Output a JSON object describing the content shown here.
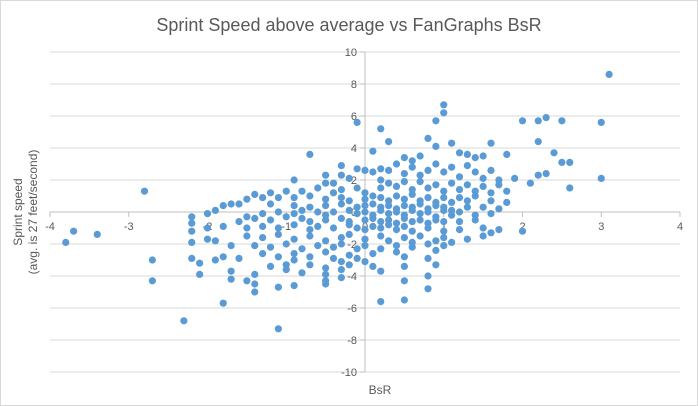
{
  "chart_data": {
    "type": "scatter",
    "title": "Sprint Speed above average vs FanGraphs BsR",
    "xlabel": "BsR",
    "ylabel_line1": "Sprint speed",
    "ylabel_line2": "(avg. is 27 feet/second)",
    "xlim": [
      -4,
      4
    ],
    "ylim": [
      -10,
      10
    ],
    "x_ticks": [
      -4,
      -3,
      -2,
      -1,
      0,
      1,
      2,
      3,
      4
    ],
    "y_ticks": [
      -10,
      -8,
      -6,
      -4,
      -2,
      0,
      2,
      4,
      6,
      8,
      10
    ],
    "x_tick_labels": [
      "-4",
      "-3",
      "-2",
      "-1",
      "0",
      "1",
      "2",
      "3",
      "4"
    ],
    "y_tick_labels": [
      "-10",
      "-8",
      "-6",
      "-4",
      "-2",
      "0",
      "2",
      "4",
      "6",
      "8",
      "10"
    ],
    "grid": "horizontal",
    "marker_color": "#5B9BD5",
    "points": [
      [
        3.1,
        8.6
      ],
      [
        1.0,
        6.7
      ],
      [
        1.0,
        6.2
      ],
      [
        -0.1,
        5.6
      ],
      [
        0.9,
        5.7
      ],
      [
        2.3,
        5.9
      ],
      [
        2.2,
        5.7
      ],
      [
        2.0,
        5.7
      ],
      [
        2.5,
        5.7
      ],
      [
        3.0,
        5.6
      ],
      [
        0.2,
        5.2
      ],
      [
        0.3,
        4.4
      ],
      [
        0.8,
        4.6
      ],
      [
        0.9,
        4.1
      ],
      [
        1.1,
        4.3
      ],
      [
        1.6,
        4.3
      ],
      [
        2.2,
        4.4
      ],
      [
        -0.7,
        3.6
      ],
      [
        0.5,
        3.4
      ],
      [
        0.7,
        3.5
      ],
      [
        1.3,
        3.6
      ],
      [
        1.4,
        3.4
      ],
      [
        1.5,
        3.5
      ],
      [
        1.8,
        3.6
      ],
      [
        2.4,
        3.7
      ],
      [
        2.5,
        3.1
      ],
      [
        2.6,
        3.1
      ],
      [
        0.1,
        3.8
      ],
      [
        1.2,
        3.7
      ],
      [
        0.6,
        3.2
      ],
      [
        -0.3,
        2.9
      ],
      [
        -0.1,
        2.7
      ],
      [
        0.0,
        2.6
      ],
      [
        0.1,
        2.5
      ],
      [
        0.2,
        2.7
      ],
      [
        0.3,
        2.6
      ],
      [
        0.4,
        3.0
      ],
      [
        0.5,
        2.4
      ],
      [
        0.6,
        2.8
      ],
      [
        0.7,
        2.3
      ],
      [
        0.8,
        2.6
      ],
      [
        0.9,
        3.0
      ],
      [
        1.0,
        2.5
      ],
      [
        1.1,
        2.8
      ],
      [
        1.2,
        2.2
      ],
      [
        1.3,
        2.9
      ],
      [
        1.4,
        2.5
      ],
      [
        1.5,
        2.1
      ],
      [
        1.6,
        2.6
      ],
      [
        1.7,
        2.0
      ],
      [
        2.3,
        2.4
      ],
      [
        2.2,
        2.3
      ],
      [
        2.1,
        1.8
      ],
      [
        2.6,
        1.5
      ],
      [
        3.0,
        2.1
      ],
      [
        1.9,
        2.1
      ],
      [
        -0.5,
        2.3
      ],
      [
        -0.3,
        2.3
      ],
      [
        -0.9,
        2.0
      ],
      [
        -0.5,
        1.8
      ],
      [
        -0.4,
        1.8
      ],
      [
        -0.2,
        2.1
      ],
      [
        0.2,
        2.0
      ],
      [
        0.2,
        1.5
      ],
      [
        0.3,
        1.8
      ],
      [
        0.4,
        1.6
      ],
      [
        0.5,
        1.9
      ],
      [
        0.6,
        1.4
      ],
      [
        0.7,
        1.9
      ],
      [
        0.8,
        1.5
      ],
      [
        0.9,
        1.7
      ],
      [
        1.0,
        1.3
      ],
      [
        1.1,
        1.8
      ],
      [
        1.2,
        1.4
      ],
      [
        1.3,
        1.7
      ],
      [
        1.4,
        1.3
      ],
      [
        1.5,
        1.6
      ],
      [
        1.6,
        1.2
      ],
      [
        1.7,
        1.7
      ],
      [
        1.8,
        1.3
      ],
      [
        -2.8,
        1.3
      ],
      [
        -1.4,
        1.1
      ],
      [
        -1.2,
        1.2
      ],
      [
        -1.0,
        1.3
      ],
      [
        -0.8,
        1.3
      ],
      [
        -0.6,
        1.5
      ],
      [
        -0.4,
        1.2
      ],
      [
        -0.3,
        1.4
      ],
      [
        -0.1,
        1.5
      ],
      [
        0.0,
        1.2
      ],
      [
        -1.5,
        0.8
      ],
      [
        -1.3,
        0.9
      ],
      [
        -1.1,
        0.9
      ],
      [
        -0.9,
        0.9
      ],
      [
        -0.7,
        1.0
      ],
      [
        -0.5,
        0.8
      ],
      [
        -0.3,
        0.9
      ],
      [
        -0.2,
        0.7
      ],
      [
        0.0,
        0.8
      ],
      [
        0.1,
        1.0
      ],
      [
        0.2,
        0.9
      ],
      [
        0.3,
        0.7
      ],
      [
        0.4,
        1.0
      ],
      [
        0.5,
        0.8
      ],
      [
        0.6,
        1.1
      ],
      [
        0.7,
        0.7
      ],
      [
        0.8,
        0.9
      ],
      [
        0.9,
        0.6
      ],
      [
        1.0,
        0.9
      ],
      [
        1.1,
        0.6
      ],
      [
        1.2,
        0.9
      ],
      [
        1.3,
        0.7
      ],
      [
        1.4,
        1.0
      ],
      [
        1.6,
        0.7
      ],
      [
        1.8,
        0.6
      ],
      [
        -1.8,
        0.4
      ],
      [
        -1.6,
        0.5
      ],
      [
        -1.7,
        0.5
      ],
      [
        -1.2,
        0.5
      ],
      [
        -0.9,
        0.4
      ],
      [
        -0.7,
        0.3
      ],
      [
        -0.5,
        0.4
      ],
      [
        -0.3,
        0.5
      ],
      [
        -0.1,
        0.3
      ],
      [
        0.0,
        0.4
      ],
      [
        0.1,
        0.5
      ],
      [
        0.2,
        0.3
      ],
      [
        0.3,
        0.4
      ],
      [
        0.4,
        0.2
      ],
      [
        0.5,
        0.4
      ],
      [
        0.6,
        0.3
      ],
      [
        0.7,
        0.5
      ],
      [
        0.8,
        0.2
      ],
      [
        0.9,
        0.4
      ],
      [
        1.0,
        0.3
      ],
      [
        1.1,
        0.1
      ],
      [
        1.3,
        0.3
      ],
      [
        1.5,
        0.3
      ],
      [
        1.7,
        0.2
      ],
      [
        -2.2,
        -0.3
      ],
      [
        -2.2,
        -0.7
      ],
      [
        -2.0,
        -0.1
      ],
      [
        -1.9,
        0.1
      ],
      [
        -1.5,
        -0.3
      ],
      [
        -1.3,
        -0.1
      ],
      [
        -1.1,
        0.0
      ],
      [
        -0.9,
        -0.1
      ],
      [
        -0.8,
        0.1
      ],
      [
        -0.6,
        0.0
      ],
      [
        -0.5,
        -0.2
      ],
      [
        -0.4,
        0.0
      ],
      [
        -0.2,
        0.1
      ],
      [
        -0.1,
        -0.1
      ],
      [
        0.0,
        0.0
      ],
      [
        0.1,
        -0.2
      ],
      [
        0.2,
        0.1
      ],
      [
        0.3,
        -0.1
      ],
      [
        0.4,
        0.0
      ],
      [
        0.5,
        -0.2
      ],
      [
        0.6,
        0.1
      ],
      [
        0.7,
        -0.1
      ],
      [
        0.8,
        0.0
      ],
      [
        0.9,
        -0.3
      ],
      [
        1.0,
        0.1
      ],
      [
        1.1,
        -0.2
      ],
      [
        1.2,
        0.0
      ],
      [
        1.4,
        -0.2
      ],
      [
        1.6,
        -0.1
      ],
      [
        -1.6,
        -0.6
      ],
      [
        -1.4,
        -0.4
      ],
      [
        -1.2,
        -0.5
      ],
      [
        -1.0,
        -0.3
      ],
      [
        -0.8,
        -0.4
      ],
      [
        -0.7,
        -0.6
      ],
      [
        -0.5,
        -0.5
      ],
      [
        -0.3,
        -0.4
      ],
      [
        -0.2,
        -0.6
      ],
      [
        0.0,
        -0.5
      ],
      [
        0.1,
        -0.4
      ],
      [
        0.2,
        -0.6
      ],
      [
        0.3,
        -0.5
      ],
      [
        0.4,
        -0.7
      ],
      [
        0.5,
        -0.4
      ],
      [
        0.6,
        -0.6
      ],
      [
        0.7,
        -0.5
      ],
      [
        0.8,
        -0.7
      ],
      [
        0.9,
        -0.5
      ],
      [
        1.0,
        -0.6
      ],
      [
        1.2,
        -0.6
      ],
      [
        1.4,
        -0.5
      ],
      [
        -2.2,
        -1.2
      ],
      [
        -2.0,
        -1.0
      ],
      [
        -1.8,
        -0.9
      ],
      [
        -1.5,
        -1.0
      ],
      [
        -1.3,
        -0.9
      ],
      [
        -1.1,
        -1.0
      ],
      [
        -0.9,
        -0.8
      ],
      [
        -0.7,
        -1.1
      ],
      [
        -0.6,
        -0.9
      ],
      [
        -0.4,
        -1.0
      ],
      [
        -0.2,
        -0.8
      ],
      [
        -0.1,
        -1.0
      ],
      [
        0.0,
        -1.1
      ],
      [
        0.1,
        -0.9
      ],
      [
        0.2,
        -1.0
      ],
      [
        0.3,
        -0.8
      ],
      [
        0.4,
        -1.1
      ],
      [
        0.5,
        -0.9
      ],
      [
        0.6,
        -1.2
      ],
      [
        0.8,
        -1.0
      ],
      [
        1.0,
        -1.2
      ],
      [
        1.2,
        -1.1
      ],
      [
        1.5,
        -1.0
      ],
      [
        1.6,
        -1.3
      ],
      [
        1.7,
        -1.1
      ],
      [
        2.0,
        -1.2
      ],
      [
        -3.7,
        -1.2
      ],
      [
        -3.4,
        -1.4
      ],
      [
        -3.8,
        -1.9
      ],
      [
        -2.0,
        -1.7
      ],
      [
        -1.9,
        -1.8
      ],
      [
        -1.5,
        -1.5
      ],
      [
        -1.3,
        -1.6
      ],
      [
        -1.1,
        -1.4
      ],
      [
        -0.9,
        -1.7
      ],
      [
        -0.7,
        -1.5
      ],
      [
        -0.5,
        -1.8
      ],
      [
        -0.3,
        -1.6
      ],
      [
        -0.2,
        -1.4
      ],
      [
        0.0,
        -1.7
      ],
      [
        0.2,
        -1.5
      ],
      [
        0.3,
        -1.8
      ],
      [
        0.5,
        -1.6
      ],
      [
        0.6,
        -1.9
      ],
      [
        0.7,
        -1.5
      ],
      [
        0.9,
        -1.8
      ],
      [
        1.0,
        -1.6
      ],
      [
        1.1,
        -1.9
      ],
      [
        1.3,
        -1.7
      ],
      [
        1.5,
        -1.5
      ],
      [
        -2.2,
        -1.9
      ],
      [
        -1.7,
        -2.1
      ],
      [
        -1.4,
        -2.1
      ],
      [
        -1.2,
        -2.2
      ],
      [
        -1.0,
        -2.0
      ],
      [
        -0.8,
        -2.3
      ],
      [
        -0.6,
        -2.1
      ],
      [
        -0.4,
        -2.2
      ],
      [
        -0.3,
        -2.0
      ],
      [
        -0.1,
        -2.3
      ],
      [
        0.0,
        -2.1
      ],
      [
        0.2,
        -2.3
      ],
      [
        0.4,
        -2.1
      ],
      [
        0.6,
        -2.2
      ],
      [
        0.8,
        -2.0
      ],
      [
        0.9,
        -2.4
      ],
      [
        1.0,
        -2.1
      ],
      [
        -2.2,
        -2.9
      ],
      [
        -1.8,
        -2.8
      ],
      [
        -1.6,
        -2.9
      ],
      [
        -1.3,
        -2.6
      ],
      [
        -1.1,
        -2.8
      ],
      [
        -0.9,
        -2.6
      ],
      [
        -0.7,
        -2.8
      ],
      [
        -0.5,
        -2.5
      ],
      [
        -0.4,
        -2.9
      ],
      [
        -0.2,
        -2.7
      ],
      [
        -0.1,
        -2.9
      ],
      [
        0.1,
        -2.6
      ],
      [
        0.4,
        -2.5
      ],
      [
        0.5,
        -2.8
      ],
      [
        0.8,
        -2.9
      ],
      [
        -2.7,
        -3.0
      ],
      [
        -2.1,
        -3.2
      ],
      [
        -1.9,
        -3.0
      ],
      [
        -1.2,
        -3.4
      ],
      [
        -1.0,
        -3.3
      ],
      [
        -0.9,
        -3.0
      ],
      [
        -0.7,
        -3.3
      ],
      [
        -0.5,
        -3.5
      ],
      [
        -0.3,
        -3.1
      ],
      [
        -0.2,
        -3.3
      ],
      [
        0.0,
        -3.1
      ],
      [
        0.1,
        -3.4
      ],
      [
        -2.1,
        -3.9
      ],
      [
        -1.7,
        -3.7
      ],
      [
        -1.4,
        -3.9
      ],
      [
        -1.0,
        -3.6
      ],
      [
        -0.8,
        -3.8
      ],
      [
        -0.5,
        -3.9
      ],
      [
        -0.3,
        -3.6
      ],
      [
        0.2,
        -3.7
      ],
      [
        0.5,
        -3.4
      ],
      [
        0.9,
        -3.3
      ],
      [
        -2.7,
        -4.3
      ],
      [
        -1.7,
        -4.2
      ],
      [
        -1.5,
        -4.3
      ],
      [
        -1.4,
        -4.5
      ],
      [
        -0.9,
        -4.6
      ],
      [
        -0.5,
        -4.3
      ],
      [
        -0.5,
        -4.5
      ],
      [
        -0.3,
        -4.1
      ],
      [
        0.5,
        -4.3
      ],
      [
        0.8,
        -4.0
      ],
      [
        -1.4,
        -5.0
      ],
      [
        -1.1,
        -4.7
      ],
      [
        0.8,
        -4.8
      ],
      [
        -1.8,
        -5.7
      ],
      [
        0.2,
        -5.6
      ],
      [
        0.5,
        -5.5
      ],
      [
        -2.3,
        -6.8
      ],
      [
        -1.1,
        -7.3
      ]
    ]
  }
}
